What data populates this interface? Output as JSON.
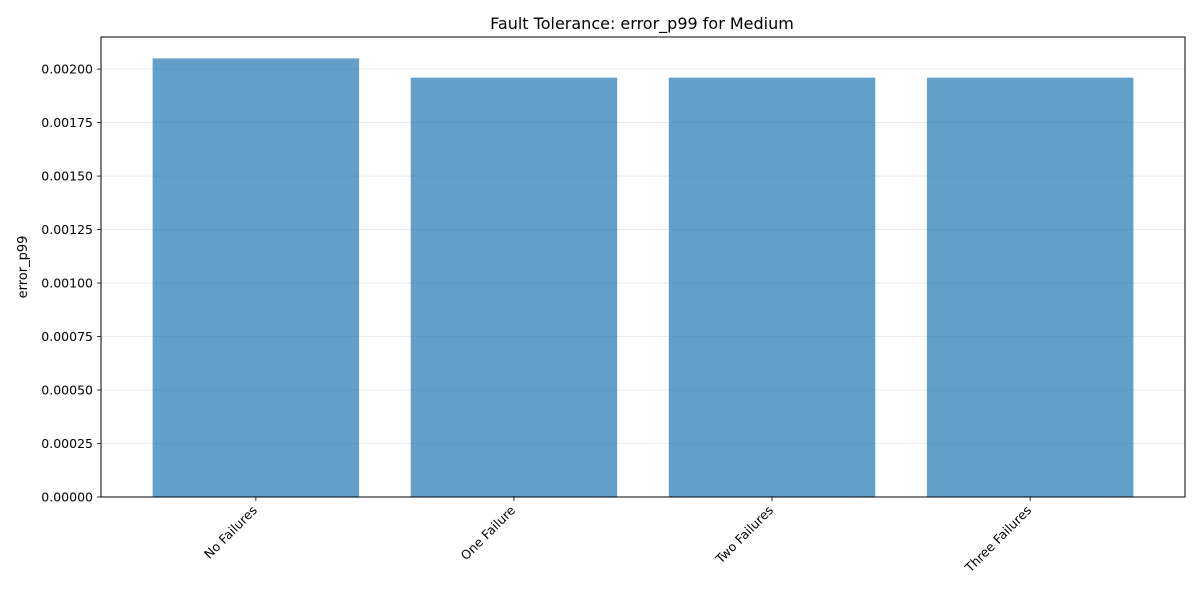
{
  "chart_data": {
    "type": "bar",
    "title": "Fault Tolerance: error_p99 for Medium",
    "xlabel": "",
    "ylabel": "error_p99",
    "categories": [
      "No Failures",
      "One Failure",
      "Two Failures",
      "Three Failures"
    ],
    "values": [
      0.00205,
      0.00196,
      0.00196,
      0.00196
    ],
    "ylim": [
      0,
      0.00215
    ],
    "yticks": [
      0.0,
      0.00025,
      0.0005,
      0.00075,
      0.001,
      0.00125,
      0.0015,
      0.00175,
      0.002
    ],
    "ytick_labels": [
      "0.00000",
      "0.00025",
      "0.00050",
      "0.00075",
      "0.00100",
      "0.00125",
      "0.00150",
      "0.00175",
      "0.00200"
    ],
    "bar_color": "#1f77b4",
    "bar_alpha": 0.7,
    "grid": "y-axis only",
    "legend": "none"
  }
}
